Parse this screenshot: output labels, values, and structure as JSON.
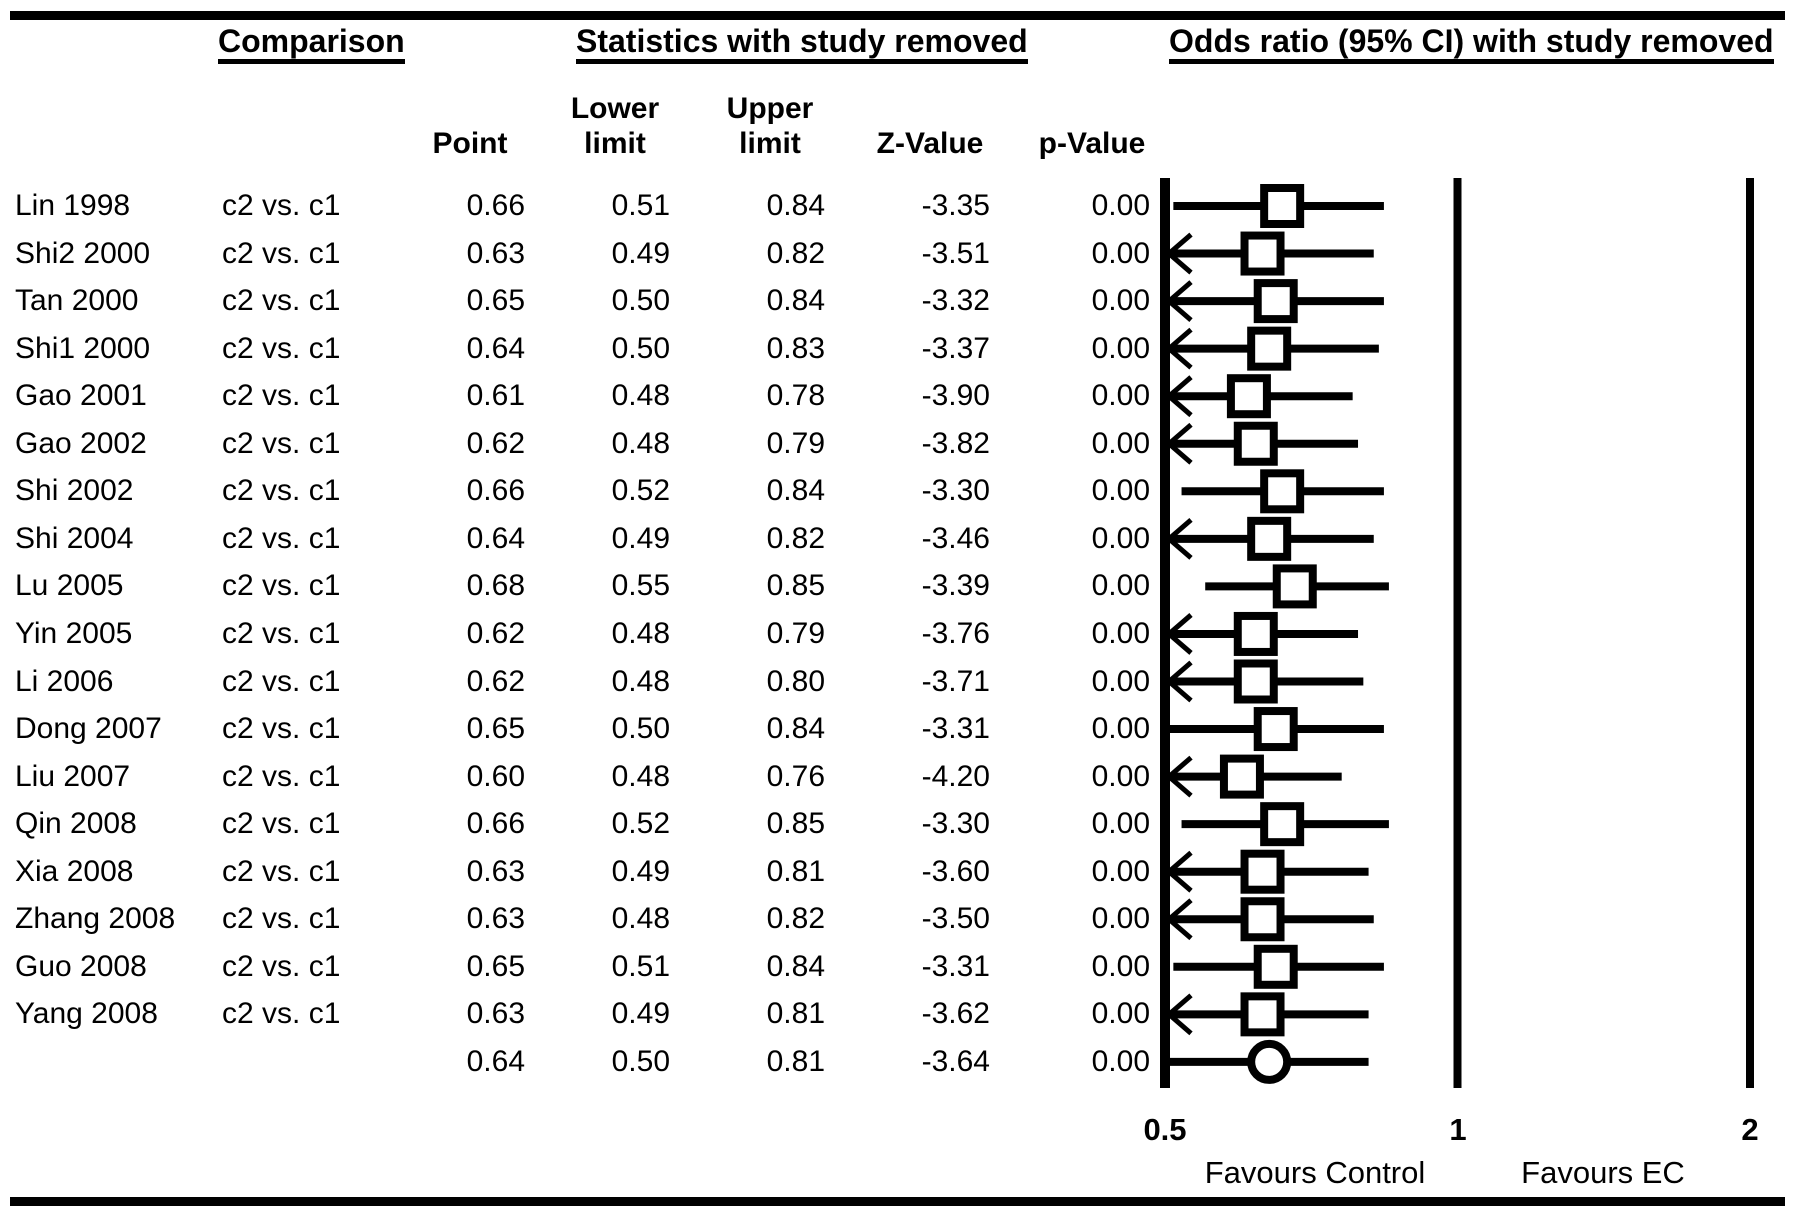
{
  "header": {
    "comparison_group": "Comparison",
    "stats_group": "Statistics with study removed",
    "plot_group": "Odds ratio (95% CI) with study removed",
    "subcolumns": {
      "point": "Point",
      "lower_line1": "Lower",
      "lower_line2": "limit",
      "upper_line1": "Upper",
      "upper_line2": "limit",
      "z": "Z-Value",
      "p": "p-Value"
    }
  },
  "chart_data": {
    "type": "forest",
    "x_scale": "log2",
    "x_axis_range": [
      0.5,
      2
    ],
    "x_ticks": [
      "0.5",
      "1",
      "2"
    ],
    "x_axis_labels": {
      "left": "Favours Control",
      "right": "Favours EC"
    },
    "columns": [
      "Point",
      "Lower limit",
      "Upper limit",
      "Z-Value",
      "p-Value"
    ],
    "rows": [
      {
        "study": "Lin 1998",
        "comparison": "c2 vs. c1",
        "point": 0.66,
        "lower": 0.51,
        "upper": 0.84,
        "z": -3.35,
        "p": 0.0,
        "clipped_left": false,
        "marker": "square"
      },
      {
        "study": "Shi2 2000",
        "comparison": "c2 vs. c1",
        "point": 0.63,
        "lower": 0.49,
        "upper": 0.82,
        "z": -3.51,
        "p": 0.0,
        "clipped_left": true,
        "marker": "square"
      },
      {
        "study": "Tan 2000",
        "comparison": "c2 vs. c1",
        "point": 0.65,
        "lower": 0.5,
        "upper": 0.84,
        "z": -3.32,
        "p": 0.0,
        "clipped_left": true,
        "marker": "square"
      },
      {
        "study": "Shi1 2000",
        "comparison": "c2 vs. c1",
        "point": 0.64,
        "lower": 0.5,
        "upper": 0.83,
        "z": -3.37,
        "p": 0.0,
        "clipped_left": true,
        "marker": "square"
      },
      {
        "study": "Gao 2001",
        "comparison": "c2 vs. c1",
        "point": 0.61,
        "lower": 0.48,
        "upper": 0.78,
        "z": -3.9,
        "p": 0.0,
        "clipped_left": true,
        "marker": "square"
      },
      {
        "study": "Gao 2002",
        "comparison": "c2 vs. c1",
        "point": 0.62,
        "lower": 0.48,
        "upper": 0.79,
        "z": -3.82,
        "p": 0.0,
        "clipped_left": true,
        "marker": "square"
      },
      {
        "study": "Shi 2002",
        "comparison": "c2 vs. c1",
        "point": 0.66,
        "lower": 0.52,
        "upper": 0.84,
        "z": -3.3,
        "p": 0.0,
        "clipped_left": false,
        "marker": "square"
      },
      {
        "study": "Shi 2004",
        "comparison": "c2 vs. c1",
        "point": 0.64,
        "lower": 0.49,
        "upper": 0.82,
        "z": -3.46,
        "p": 0.0,
        "clipped_left": true,
        "marker": "square"
      },
      {
        "study": "Lu 2005",
        "comparison": "c2 vs. c1",
        "point": 0.68,
        "lower": 0.55,
        "upper": 0.85,
        "z": -3.39,
        "p": 0.0,
        "clipped_left": false,
        "marker": "square"
      },
      {
        "study": "Yin 2005",
        "comparison": "c2 vs. c1",
        "point": 0.62,
        "lower": 0.48,
        "upper": 0.79,
        "z": -3.76,
        "p": 0.0,
        "clipped_left": true,
        "marker": "square"
      },
      {
        "study": "Li 2006",
        "comparison": "c2 vs. c1",
        "point": 0.62,
        "lower": 0.48,
        "upper": 0.8,
        "z": -3.71,
        "p": 0.0,
        "clipped_left": true,
        "marker": "square"
      },
      {
        "study": "Dong 2007",
        "comparison": "c2 vs. c1",
        "point": 0.65,
        "lower": 0.5,
        "upper": 0.84,
        "z": -3.31,
        "p": 0.0,
        "clipped_left": false,
        "marker": "square"
      },
      {
        "study": "Liu 2007",
        "comparison": "c2 vs. c1",
        "point": 0.6,
        "lower": 0.48,
        "upper": 0.76,
        "z": -4.2,
        "p": 0.0,
        "clipped_left": true,
        "marker": "square"
      },
      {
        "study": "Qin 2008",
        "comparison": "c2 vs. c1",
        "point": 0.66,
        "lower": 0.52,
        "upper": 0.85,
        "z": -3.3,
        "p": 0.0,
        "clipped_left": false,
        "marker": "square"
      },
      {
        "study": "Xia 2008",
        "comparison": "c2 vs. c1",
        "point": 0.63,
        "lower": 0.49,
        "upper": 0.81,
        "z": -3.6,
        "p": 0.0,
        "clipped_left": true,
        "marker": "square"
      },
      {
        "study": "Zhang 2008",
        "comparison": "c2 vs. c1",
        "point": 0.63,
        "lower": 0.48,
        "upper": 0.82,
        "z": -3.5,
        "p": 0.0,
        "clipped_left": true,
        "marker": "square"
      },
      {
        "study": "Guo 2008",
        "comparison": "c2 vs. c1",
        "point": 0.65,
        "lower": 0.51,
        "upper": 0.84,
        "z": -3.31,
        "p": 0.0,
        "clipped_left": false,
        "marker": "square"
      },
      {
        "study": "Yang 2008",
        "comparison": "c2 vs. c1",
        "point": 0.63,
        "lower": 0.49,
        "upper": 0.81,
        "z": -3.62,
        "p": 0.0,
        "clipped_left": true,
        "marker": "square"
      },
      {
        "study": "",
        "comparison": "",
        "point": 0.64,
        "lower": 0.5,
        "upper": 0.81,
        "z": -3.64,
        "p": 0.0,
        "clipped_left": false,
        "marker": "circle"
      }
    ]
  },
  "colors": {
    "ink": "#000000",
    "background": "#ffffff"
  }
}
